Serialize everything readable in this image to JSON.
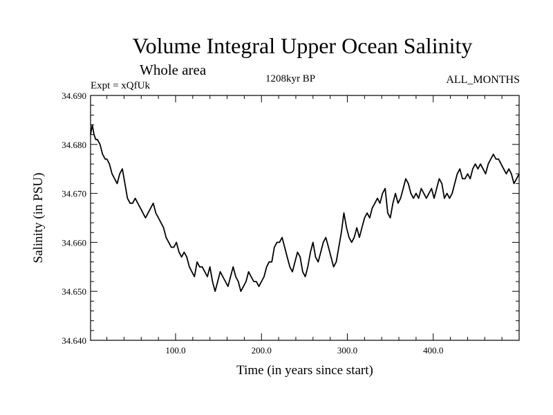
{
  "header": {
    "title": "Volume Integral Upper Ocean Salinity",
    "subtitle": "Whole area",
    "experiment": "Expt = xQfUk",
    "epoch": "1208kyr BP",
    "months": "ALL_MONTHS"
  },
  "chart_data": {
    "type": "line",
    "title": "Volume Integral Upper Ocean Salinity",
    "xlabel": "Time (in years since start)",
    "ylabel": "Salinity (in PSU)",
    "xlim": [
      1,
      500
    ],
    "ylim": [
      34.64,
      34.69
    ],
    "x_ticks": [
      100,
      200,
      300,
      400
    ],
    "x_tick_labels": [
      "100.0",
      "200.0",
      "300.0",
      "400.0"
    ],
    "y_ticks": [
      34.64,
      34.65,
      34.66,
      34.67,
      34.68,
      34.69
    ],
    "y_tick_labels": [
      "34.640",
      "34.650",
      "34.660",
      "34.670",
      "34.680",
      "34.690"
    ],
    "grid": false,
    "series": [
      {
        "name": "Salinity",
        "color": "#000000",
        "x": [
          1,
          3,
          5,
          7,
          9,
          12,
          15,
          18,
          20,
          23,
          26,
          29,
          32,
          35,
          38,
          41,
          44,
          47,
          50,
          53,
          56,
          59,
          62,
          65,
          68,
          71,
          74,
          77,
          80,
          83,
          86,
          89,
          92,
          95,
          98,
          101,
          104,
          107,
          110,
          113,
          116,
          119,
          122,
          125,
          128,
          131,
          134,
          137,
          140,
          143,
          146,
          149,
          152,
          155,
          158,
          161,
          164,
          167,
          170,
          173,
          176,
          179,
          182,
          185,
          188,
          191,
          194,
          197,
          200,
          203,
          206,
          209,
          212,
          215,
          218,
          221,
          224,
          227,
          230,
          233,
          236,
          239,
          242,
          245,
          248,
          251,
          254,
          257,
          260,
          263,
          266,
          269,
          272,
          275,
          278,
          281,
          284,
          287,
          290,
          293,
          296,
          299,
          302,
          305,
          308,
          311,
          314,
          317,
          320,
          323,
          326,
          329,
          332,
          335,
          338,
          341,
          344,
          347,
          350,
          353,
          356,
          359,
          362,
          365,
          368,
          371,
          374,
          377,
          380,
          383,
          386,
          389,
          392,
          395,
          398,
          401,
          404,
          407,
          410,
          413,
          416,
          419,
          422,
          425,
          428,
          431,
          434,
          437,
          440,
          443,
          446,
          449,
          452,
          455,
          458,
          461,
          464,
          467,
          470,
          473,
          476,
          479,
          482,
          485,
          488,
          491,
          494,
          497,
          500
        ],
        "values": [
          34.682,
          34.684,
          34.682,
          34.681,
          34.681,
          34.68,
          34.678,
          34.677,
          34.677,
          34.676,
          34.674,
          34.673,
          34.672,
          34.674,
          34.675,
          34.672,
          34.669,
          34.668,
          34.668,
          34.669,
          34.668,
          34.667,
          34.666,
          34.665,
          34.666,
          34.667,
          34.668,
          34.666,
          34.665,
          34.664,
          34.663,
          34.661,
          34.66,
          34.659,
          34.659,
          34.66,
          34.658,
          34.657,
          34.658,
          34.657,
          34.655,
          34.654,
          34.653,
          34.656,
          34.655,
          34.655,
          34.654,
          34.653,
          34.655,
          34.652,
          34.65,
          34.652,
          34.654,
          34.653,
          34.652,
          34.651,
          34.653,
          34.655,
          34.653,
          34.652,
          34.65,
          34.651,
          34.652,
          34.654,
          34.653,
          34.652,
          34.652,
          34.651,
          34.652,
          34.653,
          34.655,
          34.656,
          34.656,
          34.659,
          34.66,
          34.66,
          34.661,
          34.659,
          34.657,
          34.655,
          34.654,
          34.656,
          34.658,
          34.657,
          34.654,
          34.653,
          34.655,
          34.658,
          34.66,
          34.657,
          34.656,
          34.658,
          34.66,
          34.661,
          34.659,
          34.657,
          34.655,
          34.656,
          34.659,
          34.662,
          34.666,
          34.663,
          34.661,
          34.66,
          34.661,
          34.663,
          34.661,
          34.663,
          34.665,
          34.666,
          34.665,
          34.667,
          34.668,
          34.669,
          34.668,
          34.67,
          34.671,
          34.666,
          34.665,
          34.668,
          34.67,
          34.668,
          34.669,
          34.671,
          34.673,
          34.672,
          34.67,
          34.669,
          34.67,
          34.669,
          34.671,
          34.67,
          34.669,
          34.67,
          34.671,
          34.669,
          34.671,
          34.673,
          34.672,
          34.669,
          34.67,
          34.669,
          34.67,
          34.672,
          34.674,
          34.675,
          34.673,
          34.673,
          34.674,
          34.673,
          34.675,
          34.676,
          34.675,
          34.676,
          34.675,
          34.674,
          34.676,
          34.677,
          34.678,
          34.677,
          34.677,
          34.676,
          34.675,
          34.674,
          34.675,
          34.674,
          34.672,
          34.673,
          34.674
        ]
      }
    ]
  }
}
